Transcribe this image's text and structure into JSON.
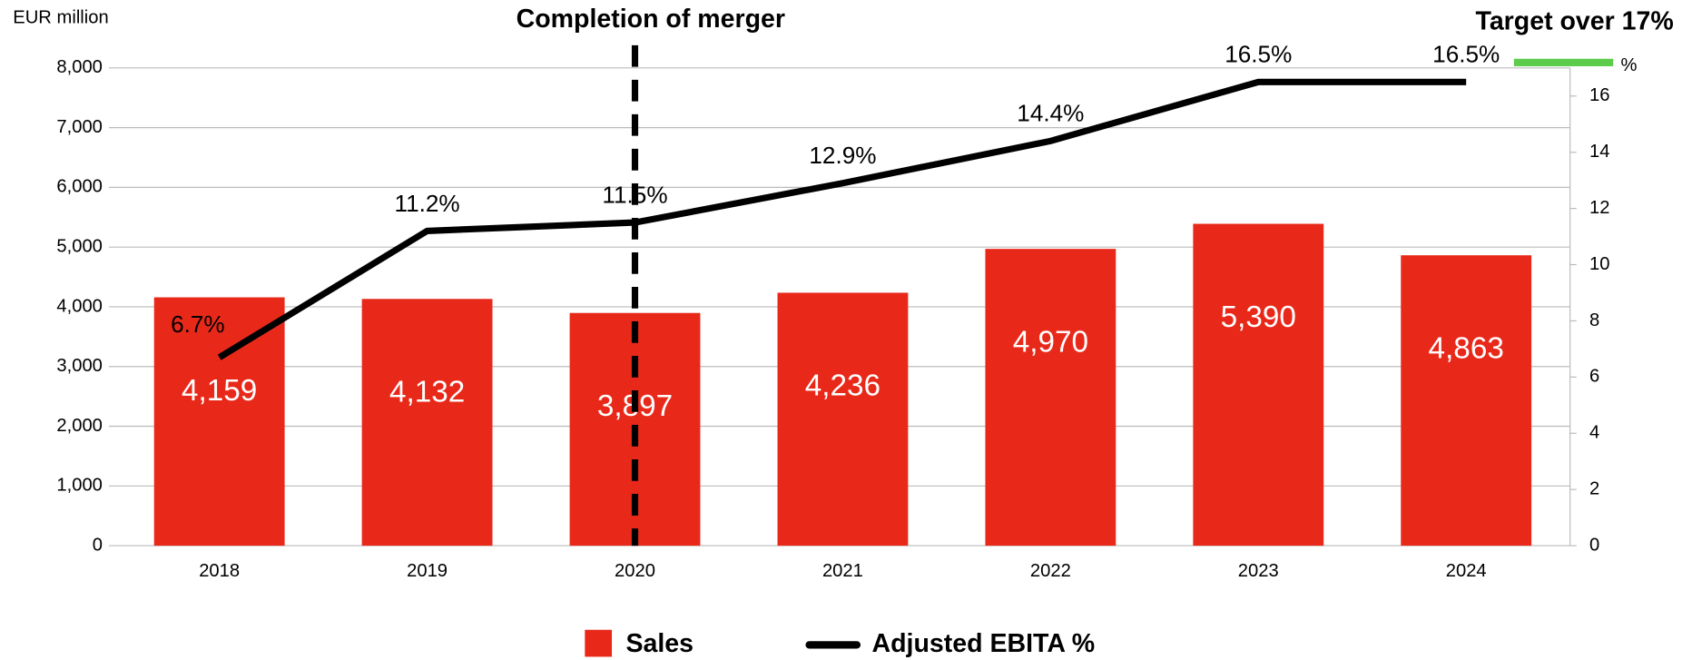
{
  "chart_data": {
    "type": "bar_line",
    "y_label": "EUR million",
    "y2_label": "%",
    "categories": [
      "2018",
      "2019",
      "2020",
      "2021",
      "2022",
      "2023",
      "2024"
    ],
    "series": [
      {
        "name": "Sales",
        "color": "#e8291a",
        "type": "bar",
        "values": [
          4159,
          4132,
          3897,
          4236,
          4970,
          5390,
          4863
        ],
        "value_labels": [
          "4,159",
          "4,132",
          "3,897",
          "4,236",
          "4,970",
          "5,390",
          "4,863"
        ]
      },
      {
        "name": "Adjusted EBITA %",
        "color": "#000000",
        "type": "line",
        "axis": "y2",
        "values": [
          6.7,
          11.2,
          11.5,
          12.9,
          14.4,
          16.5,
          16.5
        ],
        "value_labels": [
          "6.7%",
          "11.2%",
          "11.5%",
          "12.9%",
          "14.4%",
          "16.5%",
          "16.5%"
        ]
      }
    ],
    "ylim": [
      0,
      8000
    ],
    "yticks": [
      0,
      {
        "value": 1000,
        "label": "1,000"
      },
      {
        "value": 2000,
        "label": "2,000"
      },
      {
        "value": 3000,
        "label": "3,000"
      },
      {
        "value": 4000,
        "label": "4,000"
      },
      {
        "value": 5000,
        "label": "5,000"
      },
      {
        "value": 6000,
        "label": "6,000"
      },
      {
        "value": 7000,
        "label": "7,000"
      },
      {
        "value": 8000,
        "label": "8,000"
      }
    ],
    "y2lim": [
      0,
      17
    ],
    "y2ticks": [
      0,
      2,
      4,
      6,
      8,
      10,
      12,
      14,
      16
    ],
    "grid": true,
    "legend": "bottom",
    "annotations": [
      {
        "text": "Completion of merger",
        "category": "2020",
        "color": "#000000"
      },
      {
        "text": "Target over 17%",
        "value": 17,
        "color": "#5ccc4a"
      }
    ]
  }
}
